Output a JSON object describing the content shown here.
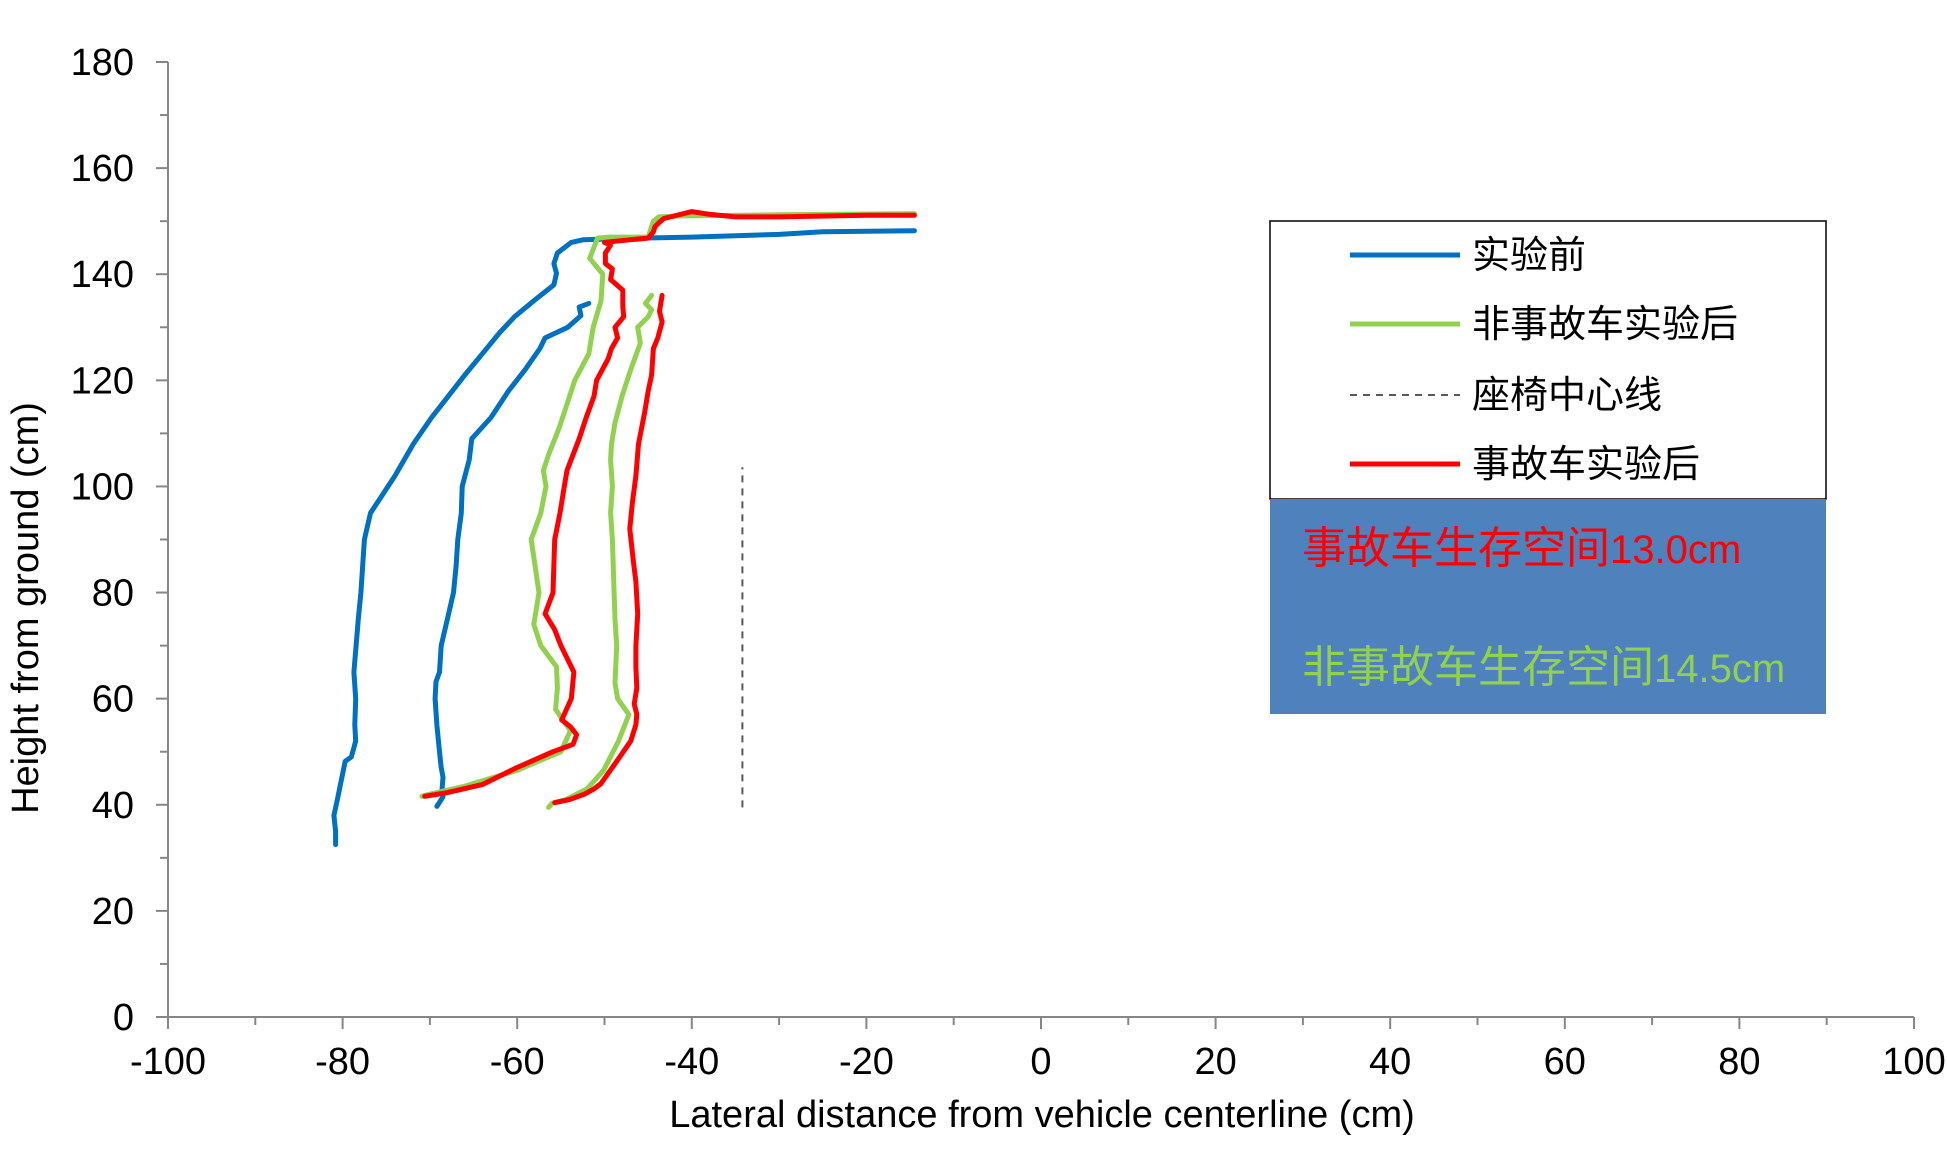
{
  "chart_data": {
    "type": "line",
    "title": "",
    "xlabel": "Lateral distance from vehicle centerline (cm)",
    "ylabel": "Height from ground (cm)",
    "xlim": [
      -100,
      100
    ],
    "ylim": [
      0,
      180
    ],
    "x_ticks": [
      "-100",
      "-80",
      "-60",
      "-40",
      "-20",
      "0",
      "20",
      "40",
      "60",
      "80",
      "100"
    ],
    "y_ticks": [
      "0",
      "20",
      "40",
      "60",
      "80",
      "100",
      "120",
      "140",
      "160",
      "180"
    ],
    "grid": false,
    "legend_position": "right",
    "series": [
      {
        "name": "实验前",
        "color": "#0070C0",
        "style": "solid",
        "segments": [
          [
            [
              -80.8,
              32.5
            ],
            [
              -80.8,
              35
            ],
            [
              -81,
              38
            ],
            [
              -80.6,
              41
            ],
            [
              -80.1,
              45
            ],
            [
              -79.7,
              48.2
            ],
            [
              -79,
              49
            ],
            [
              -78.5,
              52
            ],
            [
              -78.6,
              55
            ],
            [
              -78.5,
              60
            ],
            [
              -78.7,
              65
            ],
            [
              -78.2,
              75
            ],
            [
              -77.9,
              80
            ],
            [
              -77.5,
              90
            ],
            [
              -76.8,
              95
            ],
            [
              -75.6,
              98
            ],
            [
              -74,
              102
            ],
            [
              -71.9,
              108
            ],
            [
              -69.8,
              113
            ],
            [
              -67.9,
              117
            ],
            [
              -66,
              121
            ],
            [
              -64,
              125
            ],
            [
              -62,
              129
            ],
            [
              -60.3,
              132
            ],
            [
              -58.1,
              135
            ],
            [
              -55.8,
              138
            ],
            [
              -55.5,
              140.2
            ],
            [
              -55.8,
              142
            ],
            [
              -55.4,
              144
            ],
            [
              -53.8,
              146
            ],
            [
              -52.4,
              146.5
            ],
            [
              -46,
              146.8
            ],
            [
              -40,
              147
            ],
            [
              -30,
              147.5
            ],
            [
              -25,
              148
            ],
            [
              -14.5,
              148.2
            ]
          ],
          [
            [
              -69.2,
              39.7
            ],
            [
              -68.5,
              41.5
            ],
            [
              -68.6,
              43
            ],
            [
              -68.5,
              45.2
            ],
            [
              -68.7,
              47
            ],
            [
              -68.9,
              50
            ],
            [
              -69.2,
              55
            ],
            [
              -69.4,
              60
            ],
            [
              -69.3,
              63.2
            ],
            [
              -68.9,
              65
            ],
            [
              -68.7,
              70
            ],
            [
              -68,
              75
            ],
            [
              -67.3,
              80
            ],
            [
              -67,
              85
            ],
            [
              -66.8,
              90
            ],
            [
              -66.4,
              95
            ],
            [
              -66.3,
              100
            ],
            [
              -65.5,
              105
            ],
            [
              -65.2,
              109
            ],
            [
              -63,
              113
            ],
            [
              -61,
              118
            ],
            [
              -59.1,
              122
            ],
            [
              -57.4,
              126
            ],
            [
              -56.8,
              128
            ],
            [
              -54.2,
              130
            ],
            [
              -52.7,
              132.2
            ],
            [
              -52.9,
              133.8
            ],
            [
              -51.8,
              134.5
            ]
          ]
        ]
      },
      {
        "name": "非事故车实验后",
        "color": "#92D050",
        "style": "solid",
        "segments": [
          [
            [
              -70.9,
              41.6
            ],
            [
              -70,
              42
            ],
            [
              -66,
              43.5
            ],
            [
              -60,
              46.5
            ],
            [
              -55,
              50
            ],
            [
              -53.9,
              54
            ],
            [
              -54.8,
              56
            ],
            [
              -55.6,
              58
            ],
            [
              -55.4,
              62
            ],
            [
              -55.5,
              66
            ],
            [
              -57.3,
              70
            ],
            [
              -58.1,
              74
            ],
            [
              -57.5,
              80
            ],
            [
              -58.4,
              90
            ],
            [
              -57.3,
              95
            ],
            [
              -56.7,
              100
            ],
            [
              -57,
              103
            ],
            [
              -56.4,
              106
            ],
            [
              -55.2,
              111
            ],
            [
              -54.4,
              115
            ],
            [
              -53.4,
              120
            ],
            [
              -51.8,
              125
            ],
            [
              -51.3,
              130
            ],
            [
              -50.4,
              135
            ],
            [
              -50.2,
              140
            ],
            [
              -51.7,
              143
            ],
            [
              -50.8,
              146.8
            ],
            [
              -49.5,
              147
            ],
            [
              -45,
              147
            ],
            [
              -44.6,
              149
            ],
            [
              -44.4,
              150
            ],
            [
              -43.8,
              150.8
            ],
            [
              -41,
              151
            ],
            [
              -30,
              151.2
            ],
            [
              -14.5,
              151.4
            ]
          ],
          [
            [
              -56.4,
              39.5
            ],
            [
              -56,
              40.3
            ],
            [
              -54.4,
              41
            ],
            [
              -52,
              43
            ],
            [
              -50.1,
              46.5
            ],
            [
              -48.4,
              52
            ],
            [
              -47.2,
              57
            ],
            [
              -48.5,
              60
            ],
            [
              -48.8,
              63
            ],
            [
              -48.6,
              70
            ],
            [
              -48.8,
              75
            ],
            [
              -48.9,
              80
            ],
            [
              -49.1,
              90
            ],
            [
              -49.3,
              95
            ],
            [
              -49.1,
              100
            ],
            [
              -49.3,
              105
            ],
            [
              -49.2,
              108
            ],
            [
              -48.8,
              112
            ],
            [
              -48,
              117
            ],
            [
              -47,
              122
            ],
            [
              -45.9,
              127
            ],
            [
              -46.2,
              130
            ],
            [
              -45,
              132
            ],
            [
              -44.6,
              133.3
            ],
            [
              -45.3,
              134.5
            ],
            [
              -44.6,
              136
            ]
          ]
        ]
      },
      {
        "name": "座椅中心线",
        "color": "#595959",
        "style": "dashed",
        "segments": [
          [
            [
              -34.2,
              39.5
            ],
            [
              -34.2,
              103.6
            ]
          ]
        ]
      },
      {
        "name": "事故车实验后",
        "color": "#FF0000",
        "style": "solid",
        "segments": [
          [
            [
              -70.6,
              41.6
            ],
            [
              -68,
              42.3
            ],
            [
              -64,
              43.8
            ],
            [
              -60.2,
              46.9
            ],
            [
              -58.4,
              48.2
            ],
            [
              -55.9,
              50
            ],
            [
              -53.6,
              51.4
            ],
            [
              -53.2,
              53.2
            ],
            [
              -53.9,
              54.7
            ],
            [
              -54.9,
              56
            ],
            [
              -53.8,
              60
            ],
            [
              -53.5,
              65
            ],
            [
              -55,
              70
            ],
            [
              -55.7,
              73
            ],
            [
              -56.8,
              76
            ],
            [
              -55.9,
              80
            ],
            [
              -55.7,
              90
            ],
            [
              -55.1,
              95
            ],
            [
              -54.6,
              100
            ],
            [
              -54.3,
              103
            ],
            [
              -52.9,
              109
            ],
            [
              -52.1,
              113
            ],
            [
              -51.2,
              117
            ],
            [
              -50.9,
              120
            ],
            [
              -49.6,
              124
            ],
            [
              -49.2,
              126
            ],
            [
              -48.5,
              128
            ],
            [
              -48.8,
              130
            ],
            [
              -47.8,
              132
            ],
            [
              -47.9,
              134
            ],
            [
              -47.9,
              137
            ],
            [
              -49.3,
              139
            ],
            [
              -49.1,
              141
            ],
            [
              -49.9,
              142
            ],
            [
              -49.9,
              144
            ],
            [
              -49.3,
              145.5
            ],
            [
              -50,
              146
            ],
            [
              -47,
              146.5
            ],
            [
              -45,
              146.8
            ],
            [
              -44.4,
              148
            ],
            [
              -44.2,
              149
            ],
            [
              -43.7,
              149.8
            ],
            [
              -43.2,
              150.5
            ],
            [
              -40,
              151.8
            ],
            [
              -38,
              151.3
            ],
            [
              -35,
              150.8
            ],
            [
              -30,
              150.8
            ],
            [
              -20,
              151.1
            ],
            [
              -14.5,
              151.1
            ]
          ],
          [
            [
              -55.7,
              40.4
            ],
            [
              -54,
              41
            ],
            [
              -52.3,
              42
            ],
            [
              -51.2,
              43
            ],
            [
              -50.4,
              44
            ],
            [
              -48.6,
              48.2
            ],
            [
              -47,
              52
            ],
            [
              -46.4,
              55.1
            ],
            [
              -46.3,
              57.1
            ],
            [
              -46.6,
              59
            ],
            [
              -46.3,
              62
            ],
            [
              -46.4,
              66
            ],
            [
              -46.4,
              70
            ],
            [
              -46.2,
              76
            ],
            [
              -46.4,
              82
            ],
            [
              -46.7,
              86
            ],
            [
              -47.1,
              92
            ],
            [
              -46.8,
              97
            ],
            [
              -46.4,
              102
            ],
            [
              -46.1,
              108
            ],
            [
              -45.4,
              114
            ],
            [
              -45,
              118
            ],
            [
              -44.6,
              121
            ],
            [
              -44.4,
              126
            ],
            [
              -43.9,
              128
            ],
            [
              -43.4,
              131
            ],
            [
              -43.7,
              133
            ],
            [
              -43.4,
              136
            ]
          ]
        ]
      }
    ]
  },
  "annotation": {
    "background": "#4F81BD",
    "line1": {
      "text": "事故车生存空间",
      "value": "13.0cm",
      "color": "#FF0000"
    },
    "line2": {
      "text": "非事故车生存空间",
      "value": "14.5cm",
      "color": "#92D050"
    }
  }
}
